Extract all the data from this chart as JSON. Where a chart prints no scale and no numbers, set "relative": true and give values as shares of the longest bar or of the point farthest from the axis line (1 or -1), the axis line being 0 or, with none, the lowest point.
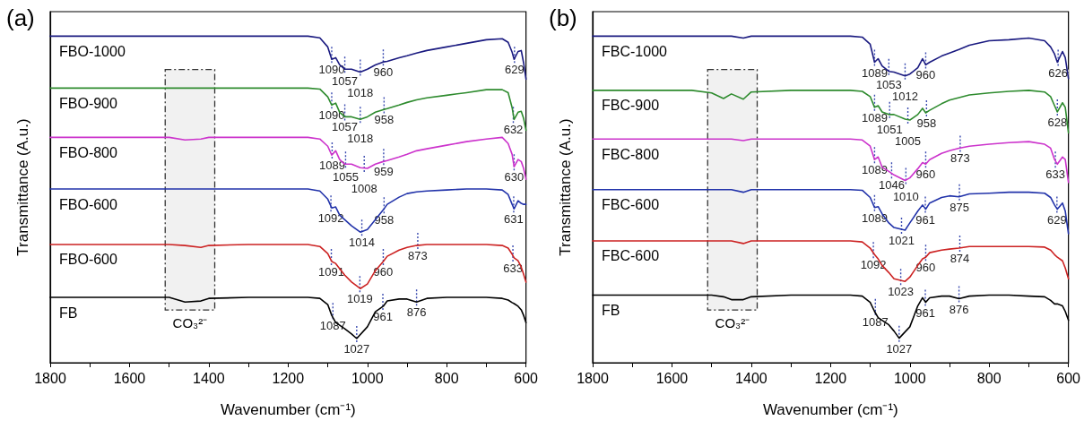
{
  "chart_data": [
    {
      "type": "line",
      "title": "(a)",
      "xlabel": "Wavenumber (cm⁻¹)",
      "ylabel": "Transmittance (A.u.)",
      "relative": true,
      "marker": "none",
      "line_style": "solid",
      "xlim": [
        1800,
        600
      ],
      "xticks": [
        1800,
        {
          "value": 1700,
          "label": null
        },
        1600,
        {
          "value": 1500,
          "label": null
        },
        1400,
        {
          "value": 1300,
          "label": null
        },
        1200,
        {
          "value": 1100,
          "label": null
        },
        1000,
        {
          "value": 900,
          "label": null
        },
        800,
        {
          "value": 700,
          "label": null
        },
        600
      ],
      "x": [
        1800,
        1700,
        1600,
        1500,
        1460,
        1420,
        1400,
        1300,
        1200,
        1150,
        1120,
        1100,
        1090,
        1080,
        1070,
        1057,
        1040,
        1018,
        1000,
        980,
        960,
        950,
        920,
        900,
        876,
        850,
        800,
        750,
        700,
        660,
        645,
        635,
        630,
        620,
        612,
        606,
        600
      ],
      "series": [
        {
          "name": "FBO-1000",
          "color": "#1a1a80",
          "values": [
            1,
            1,
            1,
            1,
            1,
            1,
            1,
            1,
            1,
            1,
            0.995,
            0.967,
            0.929,
            0.934,
            0.912,
            0.899,
            0.899,
            0.89,
            0.899,
            0.912,
            0.921,
            0.923,
            0.934,
            0.94,
            0.948,
            0.956,
            0.967,
            0.978,
            0.989,
            0.992,
            0.981,
            0.951,
            0.929,
            0.953,
            0.956,
            0.918,
            0.868
          ]
        },
        {
          "name": "FBO-900",
          "color": "#2e8b2e",
          "values": [
            0.841,
            0.841,
            0.841,
            0.841,
            0.841,
            0.841,
            0.841,
            0.841,
            0.841,
            0.841,
            0.838,
            0.814,
            0.789,
            0.795,
            0.767,
            0.753,
            0.753,
            0.745,
            0.753,
            0.767,
            0.775,
            0.778,
            0.789,
            0.797,
            0.805,
            0.811,
            0.819,
            0.827,
            0.836,
            0.836,
            0.827,
            0.781,
            0.745,
            0.767,
            0.77,
            0.748,
            0.712
          ]
        },
        {
          "name": "FBO-800",
          "color": "#cc33cc",
          "values": [
            0.69,
            0.69,
            0.69,
            0.69,
            0.682,
            0.685,
            0.69,
            0.69,
            0.69,
            0.69,
            0.685,
            0.663,
            0.636,
            0.649,
            0.622,
            0.608,
            0.608,
            0.597,
            0.595,
            0.608,
            0.616,
            0.619,
            0.63,
            0.638,
            0.649,
            0.655,
            0.666,
            0.677,
            0.685,
            0.69,
            0.671,
            0.638,
            0.6,
            0.622,
            0.616,
            0.595,
            0.562
          ]
        },
        {
          "name": "FBO-600",
          "color": "#2233aa",
          "values": [
            0.532,
            0.532,
            0.532,
            0.532,
            0.532,
            0.532,
            0.532,
            0.532,
            0.532,
            0.532,
            0.526,
            0.501,
            0.474,
            0.477,
            0.452,
            0.438,
            0.419,
            0.4,
            0.408,
            0.438,
            0.468,
            0.485,
            0.507,
            0.518,
            0.523,
            0.526,
            0.529,
            0.532,
            0.532,
            0.529,
            0.515,
            0.485,
            0.471,
            0.496,
            0.488,
            0.485,
            0.485
          ]
        },
        {
          "name": "FBO-600",
          "color": "#cc2222",
          "values": [
            0.362,
            0.362,
            0.362,
            0.362,
            0.359,
            0.353,
            0.359,
            0.362,
            0.362,
            0.362,
            0.356,
            0.334,
            0.31,
            0.304,
            0.288,
            0.268,
            0.247,
            0.227,
            0.241,
            0.282,
            0.31,
            0.326,
            0.345,
            0.353,
            0.359,
            0.362,
            0.362,
            0.362,
            0.362,
            0.359,
            0.351,
            0.332,
            0.321,
            0.312,
            0.293,
            0.271,
            0.247
          ]
        },
        {
          "name": "FB",
          "color": "#000000",
          "x": [
            1800,
            1700,
            1600,
            1500,
            1460,
            1420,
            1400,
            1300,
            1200,
            1150,
            1120,
            1100,
            1090,
            1080,
            1070,
            1057,
            1040,
            1027,
            1000,
            980,
            960,
            950,
            920,
            900,
            876,
            850,
            800,
            750,
            700,
            660,
            645,
            635,
            630,
            620,
            612,
            606,
            600
          ],
          "values": [
            0.2,
            0.2,
            0.2,
            0.2,
            0.186,
            0.189,
            0.197,
            0.2,
            0.2,
            0.2,
            0.197,
            0.178,
            0.145,
            0.123,
            0.115,
            0.104,
            0.088,
            0.074,
            0.11,
            0.156,
            0.173,
            0.189,
            0.195,
            0.195,
            0.186,
            0.197,
            0.2,
            0.2,
            0.2,
            0.197,
            0.192,
            0.184,
            0.181,
            0.173,
            0.162,
            0.145,
            0.123
          ]
        }
      ],
      "annotations": [
        {
          "text": "1090",
          "x": 1090,
          "y": 0.929
        },
        {
          "text": "1057",
          "x": 1057,
          "y": 0.899
        },
        {
          "text": "1018",
          "x": 1018,
          "y": 0.89
        },
        {
          "text": "960",
          "x": 960,
          "y": 0.921
        },
        {
          "text": "629",
          "x": 629,
          "y": 0.929
        },
        {
          "text": "1090",
          "x": 1090,
          "y": 0.789
        },
        {
          "text": "1057",
          "x": 1057,
          "y": 0.753
        },
        {
          "text": "1018",
          "x": 1018,
          "y": 0.745
        },
        {
          "text": "958",
          "x": 958,
          "y": 0.775
        },
        {
          "text": "632",
          "x": 632,
          "y": 0.745
        },
        {
          "text": "1089",
          "x": 1089,
          "y": 0.636
        },
        {
          "text": "1055",
          "x": 1055,
          "y": 0.608
        },
        {
          "text": "1008",
          "x": 1008,
          "y": 0.595
        },
        {
          "text": "959",
          "x": 959,
          "y": 0.616
        },
        {
          "text": "630",
          "x": 630,
          "y": 0.6
        },
        {
          "text": "1092",
          "x": 1092,
          "y": 0.474
        },
        {
          "text": "1014",
          "x": 1014,
          "y": 0.4
        },
        {
          "text": "958",
          "x": 958,
          "y": 0.468
        },
        {
          "text": "631",
          "x": 631,
          "y": 0.471
        },
        {
          "text": "1091",
          "x": 1091,
          "y": 0.31
        },
        {
          "text": "1019",
          "x": 1019,
          "y": 0.227
        },
        {
          "text": "960",
          "x": 960,
          "y": 0.31
        },
        {
          "text": "873",
          "x": 873,
          "y": 0.359
        },
        {
          "text": "633",
          "x": 633,
          "y": 0.321
        },
        {
          "text": "1087",
          "x": 1087,
          "y": 0.145
        },
        {
          "text": "1027",
          "x": 1027,
          "y": 0.074
        },
        {
          "text": "961",
          "x": 961,
          "y": 0.173
        },
        {
          "text": "876",
          "x": 876,
          "y": 0.186
        }
      ],
      "bands": [
        {
          "axis": "x",
          "from": 1510,
          "to": 1385,
          "label": "CO₃²⁻",
          "color": "#333333"
        }
      ]
    },
    {
      "type": "line",
      "title": "(b)",
      "xlabel": "Wavenumber (cm⁻¹)",
      "ylabel": "Transmittance (A.u.)",
      "relative": true,
      "marker": "none",
      "line_style": "solid",
      "xlim": [
        1800,
        600
      ],
      "xticks": [
        1800,
        {
          "value": 1700,
          "label": null
        },
        1600,
        {
          "value": 1500,
          "label": null
        },
        1400,
        {
          "value": 1300,
          "label": null
        },
        1200,
        {
          "value": 1100,
          "label": null
        },
        1000,
        {
          "value": 900,
          "label": null
        },
        800,
        {
          "value": 700,
          "label": null
        },
        600
      ],
      "x": [
        1800,
        1700,
        1600,
        1550,
        1500,
        1470,
        1450,
        1420,
        1400,
        1300,
        1200,
        1150,
        1120,
        1100,
        1089,
        1080,
        1070,
        1053,
        1040,
        1012,
        1000,
        980,
        968,
        960,
        950,
        920,
        900,
        876,
        850,
        800,
        750,
        700,
        660,
        645,
        635,
        628,
        615,
        608,
        600
      ],
      "series": [
        {
          "name": "FBC-1000",
          "color": "#1a1a80",
          "values": [
            1,
            1,
            1,
            1,
            1,
            1,
            1,
            0.994,
            1,
            1,
            1,
            1,
            0.997,
            0.975,
            0.92,
            0.931,
            0.909,
            0.892,
            0.89,
            0.878,
            0.884,
            0.903,
            0.931,
            0.912,
            0.92,
            0.939,
            0.948,
            0.959,
            0.972,
            0.986,
            0.989,
            0.994,
            0.986,
            0.967,
            0.945,
            0.92,
            0.953,
            0.934,
            0.87
          ]
        },
        {
          "name": "FBC-900",
          "color": "#2e8b2e",
          "values": [
            0.834,
            0.834,
            0.834,
            0.834,
            0.826,
            0.809,
            0.823,
            0.807,
            0.829,
            0.834,
            0.834,
            0.834,
            0.831,
            0.815,
            0.782,
            0.787,
            0.768,
            0.76,
            0.76,
            0.746,
            0.743,
            0.76,
            0.779,
            0.765,
            0.773,
            0.793,
            0.804,
            0.812,
            0.82,
            0.826,
            0.831,
            0.834,
            0.829,
            0.815,
            0.787,
            0.768,
            0.796,
            0.782,
            0.704
          ]
        },
        {
          "name": "FBC-800",
          "color": "#cc33cc",
          "values": [
            0.685,
            0.685,
            0.685,
            0.685,
            0.685,
            0.685,
            0.685,
            0.68,
            0.685,
            0.685,
            0.685,
            0.685,
            0.682,
            0.663,
            0.622,
            0.63,
            0.599,
            0.586,
            0.575,
            0.558,
            0.566,
            0.594,
            0.613,
            0.608,
            0.622,
            0.641,
            0.649,
            0.657,
            0.663,
            0.669,
            0.674,
            0.677,
            0.669,
            0.657,
            0.622,
            0.608,
            0.63,
            0.622,
            0.552
          ]
        },
        {
          "name": "FBC-600",
          "color": "#2233aa",
          "values": [
            0.53,
            0.53,
            0.53,
            0.53,
            0.53,
            0.53,
            0.53,
            0.522,
            0.53,
            0.53,
            0.53,
            0.53,
            0.528,
            0.506,
            0.475,
            0.478,
            0.456,
            0.428,
            0.414,
            0.406,
            0.428,
            0.464,
            0.483,
            0.47,
            0.489,
            0.506,
            0.511,
            0.508,
            0.517,
            0.519,
            0.522,
            0.522,
            0.519,
            0.506,
            0.483,
            0.47,
            0.489,
            0.464,
            0.395
          ]
        },
        {
          "name": "FBC-600",
          "color": "#cc2222",
          "values": [
            0.373,
            0.373,
            0.373,
            0.373,
            0.373,
            0.373,
            0.373,
            0.365,
            0.373,
            0.373,
            0.373,
            0.373,
            0.37,
            0.351,
            0.331,
            0.318,
            0.298,
            0.276,
            0.257,
            0.249,
            0.262,
            0.298,
            0.318,
            0.323,
            0.337,
            0.345,
            0.348,
            0.351,
            0.356,
            0.356,
            0.356,
            0.356,
            0.354,
            0.345,
            0.331,
            0.323,
            0.312,
            0.29,
            0.257
          ]
        },
        {
          "name": "FB",
          "color": "#000000",
          "x": [
            1800,
            1700,
            1600,
            1550,
            1500,
            1470,
            1450,
            1420,
            1400,
            1300,
            1200,
            1150,
            1120,
            1100,
            1089,
            1080,
            1070,
            1053,
            1040,
            1027,
            1000,
            980,
            968,
            960,
            950,
            920,
            900,
            876,
            850,
            800,
            750,
            700,
            660,
            645,
            635,
            628,
            615,
            608,
            600
          ],
          "values": [
            0.207,
            0.207,
            0.207,
            0.207,
            0.207,
            0.202,
            0.193,
            0.193,
            0.202,
            0.207,
            0.207,
            0.207,
            0.204,
            0.185,
            0.157,
            0.138,
            0.13,
            0.116,
            0.097,
            0.075,
            0.11,
            0.174,
            0.199,
            0.185,
            0.199,
            0.204,
            0.204,
            0.196,
            0.204,
            0.207,
            0.207,
            0.204,
            0.202,
            0.191,
            0.18,
            0.18,
            0.174,
            0.157,
            0.13
          ]
        }
      ],
      "annotations": [
        {
          "text": "1089",
          "x": 1089,
          "y": 0.92
        },
        {
          "text": "1053",
          "x": 1053,
          "y": 0.892
        },
        {
          "text": "1012",
          "x": 1012,
          "y": 0.878
        },
        {
          "text": "960",
          "x": 960,
          "y": 0.912
        },
        {
          "text": "626",
          "x": 626,
          "y": 0.92
        },
        {
          "text": "1089",
          "x": 1089,
          "y": 0.782
        },
        {
          "text": "1051",
          "x": 1051,
          "y": 0.76
        },
        {
          "text": "1005",
          "x": 1005,
          "y": 0.743
        },
        {
          "text": "958",
          "x": 958,
          "y": 0.765
        },
        {
          "text": "628",
          "x": 628,
          "y": 0.768
        },
        {
          "text": "1089",
          "x": 1089,
          "y": 0.622
        },
        {
          "text": "1046",
          "x": 1046,
          "y": 0.575
        },
        {
          "text": "1010",
          "x": 1010,
          "y": 0.558
        },
        {
          "text": "960",
          "x": 960,
          "y": 0.608
        },
        {
          "text": "873",
          "x": 873,
          "y": 0.657
        },
        {
          "text": "633",
          "x": 633,
          "y": 0.608
        },
        {
          "text": "1089",
          "x": 1089,
          "y": 0.475
        },
        {
          "text": "1021",
          "x": 1021,
          "y": 0.406
        },
        {
          "text": "961",
          "x": 961,
          "y": 0.47
        },
        {
          "text": "875",
          "x": 875,
          "y": 0.508
        },
        {
          "text": "629",
          "x": 629,
          "y": 0.47
        },
        {
          "text": "1092",
          "x": 1092,
          "y": 0.331
        },
        {
          "text": "1023",
          "x": 1023,
          "y": 0.249
        },
        {
          "text": "960",
          "x": 960,
          "y": 0.323
        },
        {
          "text": "874",
          "x": 874,
          "y": 0.351
        },
        {
          "text": "1087",
          "x": 1087,
          "y": 0.157
        },
        {
          "text": "1027",
          "x": 1027,
          "y": 0.075
        },
        {
          "text": "961",
          "x": 961,
          "y": 0.185
        },
        {
          "text": "876",
          "x": 876,
          "y": 0.196
        }
      ],
      "bands": [
        {
          "axis": "x",
          "from": 1510,
          "to": 1385,
          "label": "CO₃²⁻",
          "color": "#333333"
        }
      ]
    }
  ]
}
